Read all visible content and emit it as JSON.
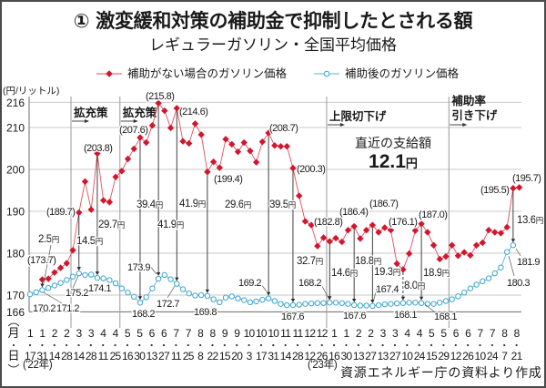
{
  "chart_data": {
    "type": "line",
    "title": "① 激変緩和対策の補助金で抑制したとされる額",
    "subtitle": "レギュラーガソリン・全国平均価格",
    "xlabel": "",
    "ylabel": "(円/リットル)",
    "ylim": [
      166,
      216
    ],
    "yticks": [
      166,
      170,
      180,
      190,
      200,
      210,
      216
    ],
    "grid": true,
    "legend": "top",
    "x_axis_header": {
      "month": "月",
      "day": "日"
    },
    "x_labels": [
      {
        "month": "1",
        "day": "17"
      },
      {
        "month": "1",
        "day": "31"
      },
      {
        "month": "2",
        "day": "14"
      },
      {
        "month": "2",
        "day": "28"
      },
      {
        "month": "3",
        "day": "14"
      },
      {
        "month": "3",
        "day": "28"
      },
      {
        "month": "4",
        "day": "11"
      },
      {
        "month": "4",
        "day": "25"
      },
      {
        "month": "5",
        "day": "16"
      },
      {
        "month": "5",
        "day": "30"
      },
      {
        "month": "6",
        "day": "13"
      },
      {
        "month": "6",
        "day": "27"
      },
      {
        "month": "7",
        "day": "11"
      },
      {
        "month": "7",
        "day": "25"
      },
      {
        "month": "8",
        "day": "8"
      },
      {
        "month": "8",
        "day": "22"
      },
      {
        "month": "9",
        "day": "15"
      },
      {
        "month": "9",
        "day": "20"
      },
      {
        "month": "10",
        "day": "3"
      },
      {
        "month": "10",
        "day": "17"
      },
      {
        "month": "10",
        "day": "31"
      },
      {
        "month": "11",
        "day": "14"
      },
      {
        "month": "11",
        "day": "28"
      },
      {
        "month": "12",
        "day": "12"
      },
      {
        "month": "12",
        "day": "26"
      },
      {
        "month": "1",
        "day": "16"
      },
      {
        "month": "1",
        "day": "30"
      },
      {
        "month": "2",
        "day": "13"
      },
      {
        "month": "2",
        "day": "27"
      },
      {
        "month": "3",
        "day": "13"
      },
      {
        "month": "3",
        "day": "27"
      },
      {
        "month": "4",
        "day": "10"
      },
      {
        "month": "4",
        "day": "24"
      },
      {
        "month": "5",
        "day": "15"
      },
      {
        "month": "5",
        "day": "29"
      },
      {
        "month": "6",
        "day": "12"
      },
      {
        "month": "6",
        "day": "26"
      },
      {
        "month": "7",
        "day": "10"
      },
      {
        "month": "7",
        "day": "24"
      },
      {
        "month": "8",
        "day": "7"
      },
      {
        "month": "8",
        "day": "21"
      }
    ],
    "year_labels": [
      {
        "text": "('22年)",
        "x_index": 0
      },
      {
        "text": "('23年)",
        "x_index": 50
      }
    ],
    "series": [
      {
        "name": "補助がない場合のガソリン価格",
        "color": "#d2162d",
        "marker": "diamond",
        "start_index": 2,
        "values": [
          173.7,
          173.9,
          175.4,
          176.5,
          177.6,
          180.7,
          189.7,
          197.1,
          190.4,
          203.8,
          192.6,
          192.2,
          198.2,
          199.6,
          202.5,
          204.9,
          207.6,
          206.4,
          210.5,
          215.8,
          214.0,
          209.9,
          214.6,
          206.7,
          206.2,
          210.9,
          208.3,
          199.4,
          201.8,
          200.4,
          207.2,
          206.0,
          204.2,
          206.4,
          204.4,
          201.7,
          206.6,
          208.7,
          205.7,
          205.5,
          205.5,
          200.3,
          193.7,
          187.6,
          186.7,
          181.7,
          183.7,
          182.8,
          183.6,
          182.7,
          185.5,
          186.4,
          183.5,
          185.5,
          186.7,
          185.0,
          186.1,
          185.5,
          177.5,
          176.1,
          179.9,
          185.4,
          187.0,
          185.0,
          181.9,
          178.6,
          179.2,
          181.9,
          179.4,
          180.2,
          179.5,
          181.9,
          182.5,
          185.5,
          185.0,
          184.8,
          186.2,
          195.5,
          195.7
        ]
      },
      {
        "name": "補助後のガソリン価格",
        "color": "#3ea5cf",
        "marker": "open-circle",
        "start_index": 0,
        "values": [
          170.2,
          170.7,
          171.2,
          171.7,
          172.3,
          172.9,
          173.6,
          174.4,
          175.2,
          174.8,
          174.9,
          174.1,
          174.0,
          173.6,
          172.8,
          171.6,
          170.6,
          169.6,
          168.2,
          169.5,
          171.6,
          173.9,
          174.8,
          173.8,
          172.7,
          171.4,
          170.4,
          169.9,
          170.0,
          169.8,
          169.0,
          168.3,
          169.4,
          169.7,
          169.2,
          168.8,
          168.3,
          168.5,
          168.9,
          169.2,
          168.6,
          167.9,
          167.6,
          167.6,
          167.7,
          167.9,
          168.0,
          168.1,
          168.1,
          168.2,
          168.2,
          168.1,
          167.9,
          167.6,
          167.5,
          167.5,
          167.4,
          167.6,
          167.8,
          167.9,
          168.0,
          168.1,
          168.2,
          168.2,
          168.1,
          167.9,
          167.9,
          168.2,
          168.6,
          169.0,
          169.7,
          170.6,
          171.6,
          172.5,
          173.3,
          174.0,
          175.2,
          176.6,
          180.3,
          181.9
        ]
      }
    ],
    "point_labels": {
      "red": [
        {
          "index": 2,
          "text": "(173.7)"
        },
        {
          "index": 8,
          "text": "(189.7)"
        },
        {
          "index": 11,
          "text": "(203.8)"
        },
        {
          "index": 18,
          "text": "(207.6)"
        },
        {
          "index": 21,
          "text": "(215.8)"
        },
        {
          "index": 24,
          "text": "(214.6)"
        },
        {
          "index": 29,
          "text": "(199.4)"
        },
        {
          "index": 39,
          "text": "(208.7)"
        },
        {
          "index": 43,
          "text": "(200.3)"
        },
        {
          "index": 49,
          "text": "(182.8)"
        },
        {
          "index": 53,
          "text": "(186.4)"
        },
        {
          "index": 56,
          "text": "(186.7)"
        },
        {
          "index": 61,
          "text": "(176.1)"
        },
        {
          "index": 64,
          "text": "(187.0)"
        },
        {
          "index": 79,
          "text": "(195.5)"
        },
        {
          "index": 80,
          "text": "(195.7)"
        }
      ],
      "blue": [
        {
          "index": 0,
          "text": "170.2"
        },
        {
          "index": 2,
          "text": "171.2"
        },
        {
          "index": 8,
          "text": "175.2"
        },
        {
          "index": 11,
          "text": "174.1"
        },
        {
          "index": 18,
          "text": "168.2"
        },
        {
          "index": 21,
          "text": "173.9"
        },
        {
          "index": 24,
          "text": "172.7"
        },
        {
          "index": 29,
          "text": "169.8"
        },
        {
          "index": 39,
          "text": "169.2"
        },
        {
          "index": 43,
          "text": "167.6"
        },
        {
          "index": 49,
          "text": "168.2"
        },
        {
          "index": 53,
          "text": "167.6"
        },
        {
          "index": 56,
          "text": "167.4"
        },
        {
          "index": 61,
          "text": "168.1"
        },
        {
          "index": 64,
          "text": "168.1"
        },
        {
          "index": 78,
          "text": "180.3"
        },
        {
          "index": 79,
          "text": "181.9"
        }
      ]
    },
    "difference_annotations": [
      {
        "index": 2,
        "value": "2.5",
        "unit": "円"
      },
      {
        "index": 8,
        "value": "14.5",
        "unit": "円"
      },
      {
        "index": 11,
        "value": "29.7",
        "unit": "円"
      },
      {
        "index": 18,
        "value": "39.4",
        "unit": "円"
      },
      {
        "index": 21,
        "value": "41.9",
        "unit": "円"
      },
      {
        "index": 24,
        "value": "41.9",
        "unit": "円"
      },
      {
        "index": 29,
        "value": "29.6",
        "unit": "円"
      },
      {
        "index": 39,
        "value": "39.5",
        "unit": "円"
      },
      {
        "index": 43,
        "value": "32.7",
        "unit": "円"
      },
      {
        "index": 49,
        "value": "14.6",
        "unit": "円"
      },
      {
        "index": 53,
        "value": "18.8",
        "unit": "円"
      },
      {
        "index": 56,
        "value": "19.3",
        "unit": "円"
      },
      {
        "index": 61,
        "value": "8.0",
        "unit": "円"
      },
      {
        "index": 64,
        "value": "18.9",
        "unit": "円"
      },
      {
        "index": 79,
        "value": "13.6",
        "unit": "円"
      }
    ],
    "policy_markers": [
      {
        "at": 6.7,
        "lines": [
          "拡充策"
        ]
      },
      {
        "at": 14.7,
        "lines": [
          "拡充策"
        ]
      },
      {
        "at": 48.5,
        "lines": [
          "上限切下げ"
        ]
      },
      {
        "at": 68.5,
        "lines": [
          "補助率",
          "引き下げ"
        ]
      }
    ],
    "callout": {
      "title": "直近の支給額",
      "value": "12.1",
      "unit": "円"
    },
    "source": "資源エネルギー庁の資料より作成"
  }
}
